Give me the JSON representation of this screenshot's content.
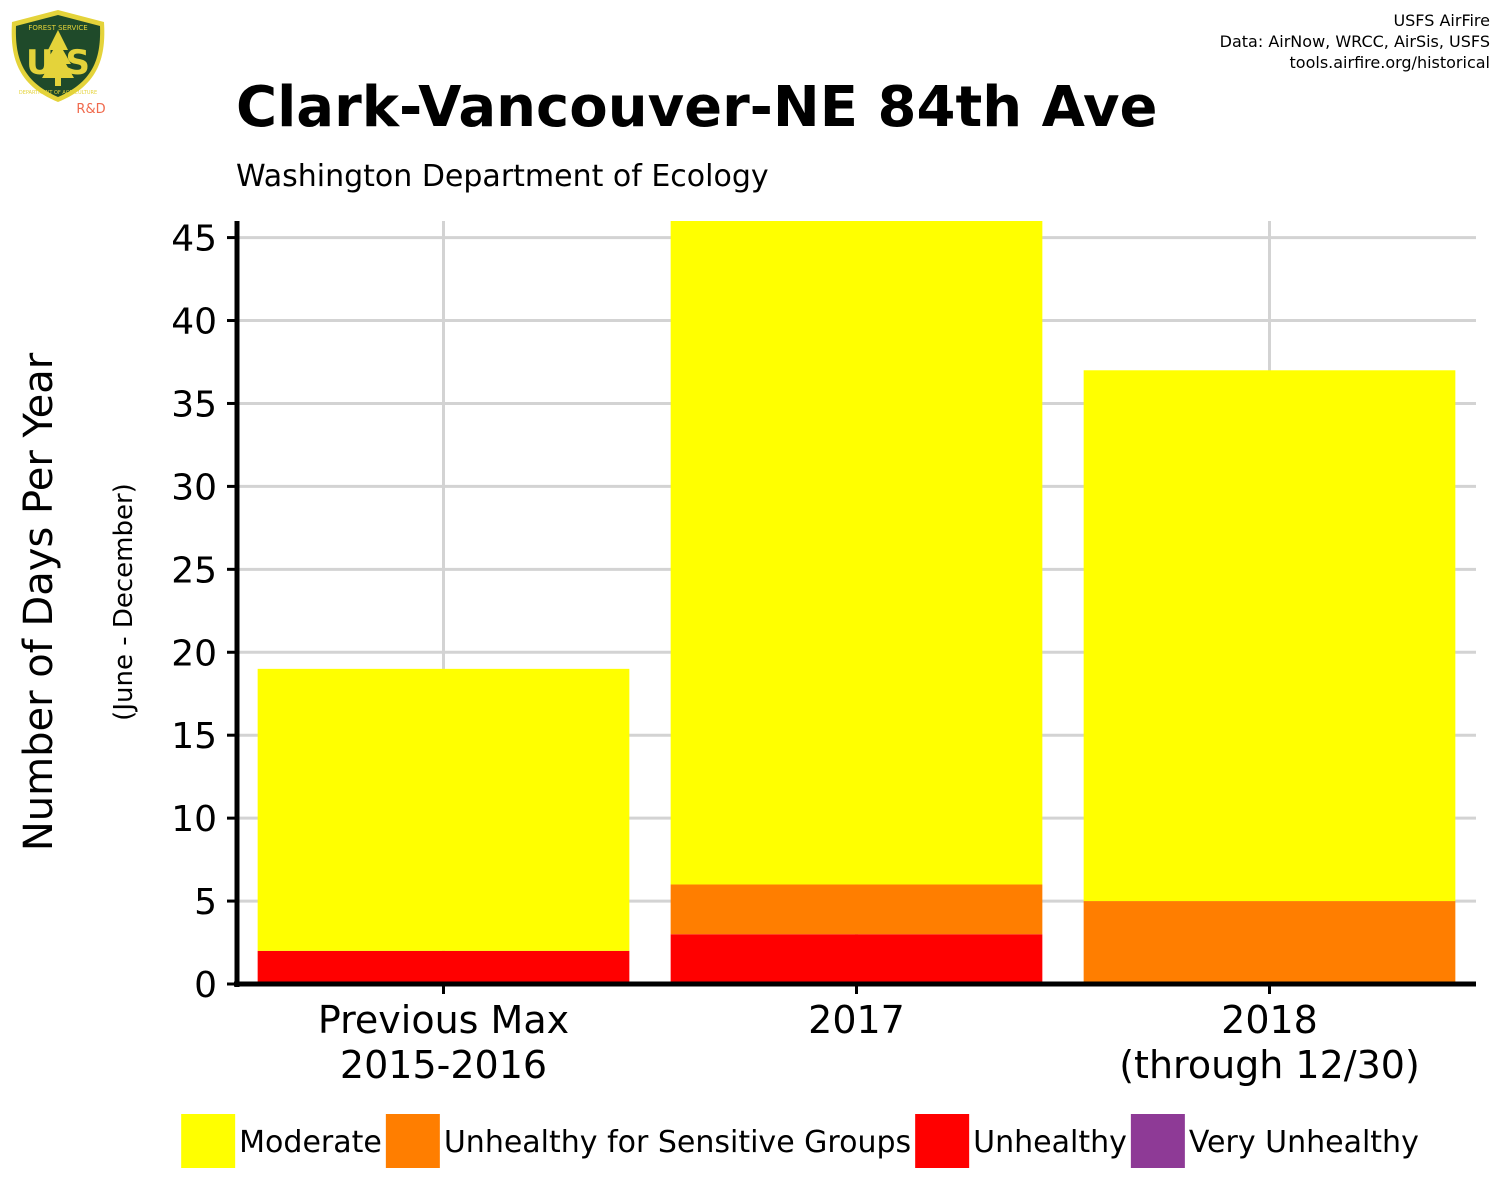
{
  "logo": {
    "top_text": "FOREST SERVICE",
    "letters": "U S",
    "bottom_text": "DEPARTMENT OF AGRICULTURE",
    "tag": "R&D"
  },
  "credits": {
    "line1": "USFS AirFire",
    "line2": "Data: AirNow, WRCC, AirSis, USFS",
    "line3": "tools.airfire.org/historical"
  },
  "chart_data": {
    "type": "bar",
    "stacked": true,
    "title": "Clark-Vancouver-NE 84th Ave",
    "subtitle": "Washington Department of Ecology",
    "ylabel": "Number of Days Per Year",
    "ylabel_sub": "(June - December)",
    "xlabel": "",
    "ylim": [
      0,
      46
    ],
    "yticks": [
      0,
      5,
      10,
      15,
      20,
      25,
      30,
      35,
      40,
      45
    ],
    "grid": true,
    "legend_position": "bottom",
    "categories": [
      [
        "Previous Max",
        "2015-2016"
      ],
      [
        "2017"
      ],
      [
        "2018",
        "(through 12/30)"
      ]
    ],
    "series": [
      {
        "name": "Very Unhealthy",
        "color": "#8e3a96",
        "values": [
          0,
          0,
          0
        ]
      },
      {
        "name": "Unhealthy",
        "color": "#ff0000",
        "values": [
          2,
          3,
          0
        ]
      },
      {
        "name": "Unhealthy for Sensitive Groups",
        "color": "#ff7e00",
        "values": [
          0,
          3,
          5
        ]
      },
      {
        "name": "Moderate",
        "color": "#ffff00",
        "values": [
          17,
          40,
          32
        ]
      }
    ],
    "legend_order": [
      "Moderate",
      "Unhealthy for Sensitive Groups",
      "Unhealthy",
      "Very Unhealthy"
    ]
  }
}
